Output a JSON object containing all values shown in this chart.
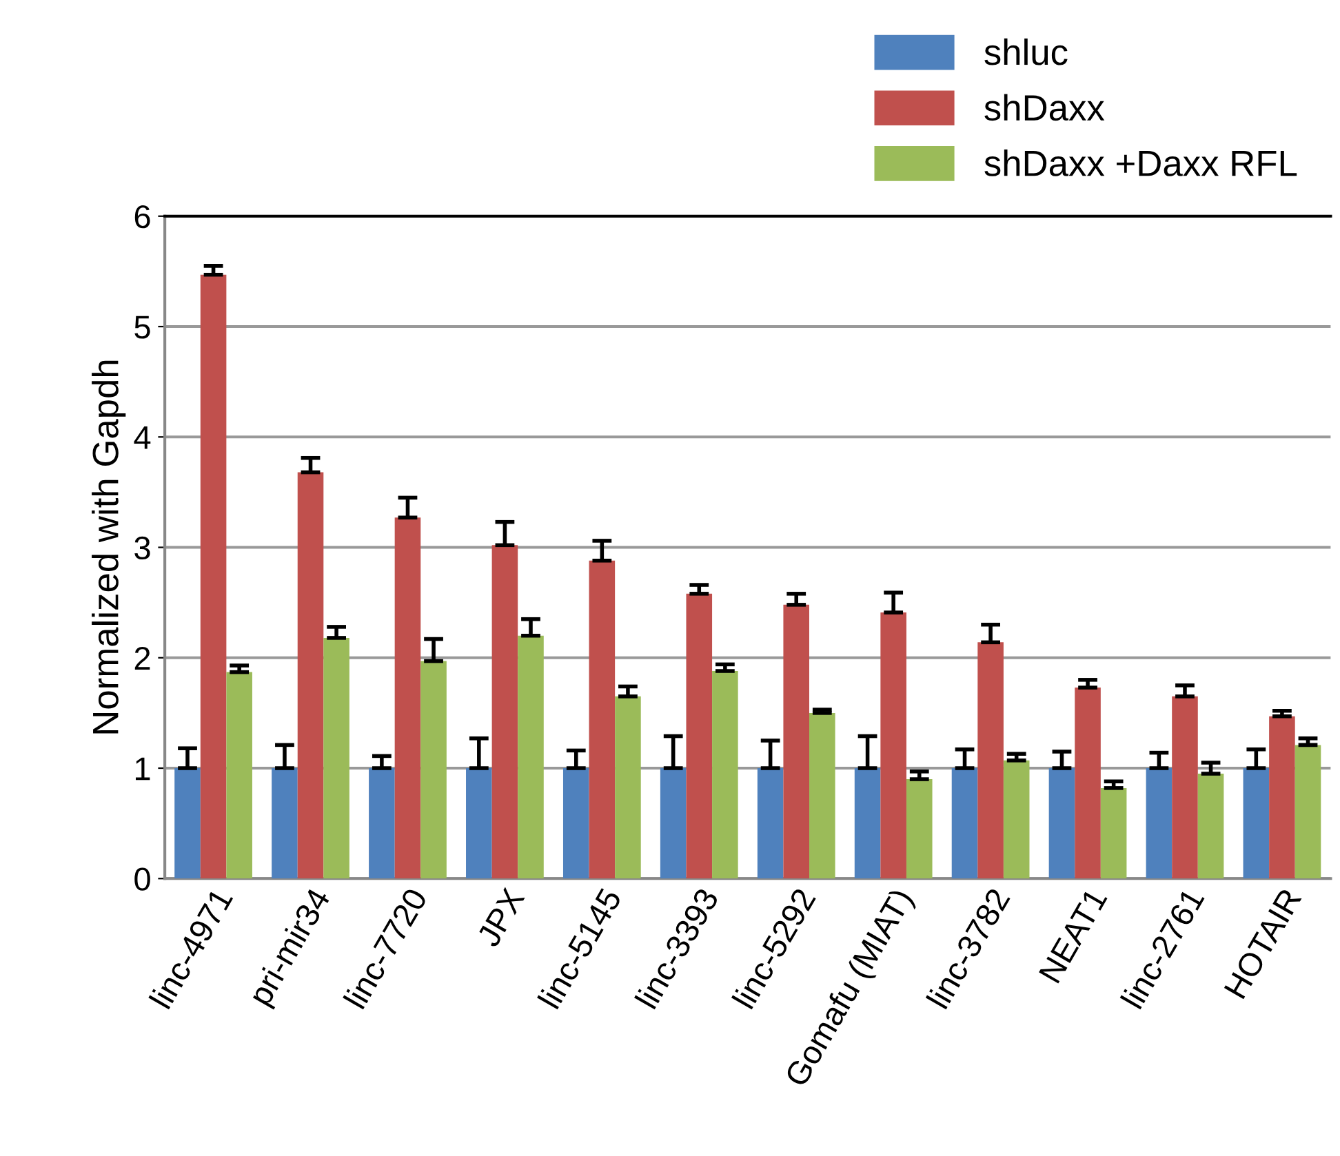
{
  "chart_data": {
    "type": "bar",
    "ylabel": "Normalized with Gapdh",
    "categories": [
      "linc-4971",
      "pri-mir34",
      "linc-7720",
      "JPX",
      "linc-5145",
      "linc-3393",
      "linc-5292",
      "Gomafu (MIAT)",
      "linc-3782",
      "NEAT1",
      "linc-2761",
      "HOTAIR"
    ],
    "series": [
      {
        "name": "shluc",
        "color": "#4f81bd",
        "values": [
          1,
          1,
          1,
          1,
          1,
          1,
          1,
          1,
          1,
          1,
          1,
          1
        ],
        "errors": [
          [
            1,
            1.18
          ],
          [
            1,
            1.21
          ],
          [
            1,
            1.11
          ],
          [
            1,
            1.27
          ],
          [
            1,
            1.16
          ],
          [
            1,
            1.29
          ],
          [
            1,
            1.25
          ],
          [
            1,
            1.29
          ],
          [
            1,
            1.17
          ],
          [
            1,
            1.15
          ],
          [
            1,
            1.14
          ],
          [
            1,
            1.17
          ]
        ]
      },
      {
        "name": "shDaxx",
        "color": "#c0504d",
        "values": [
          5.47,
          3.68,
          3.27,
          3.02,
          2.88,
          2.58,
          2.48,
          2.41,
          2.14,
          1.73,
          1.65,
          1.47
        ],
        "errors": [
          [
            5.47,
            5.55
          ],
          [
            3.68,
            3.81
          ],
          [
            3.27,
            3.45
          ],
          [
            3.02,
            3.23
          ],
          [
            2.88,
            3.06
          ],
          [
            2.58,
            2.66
          ],
          [
            2.48,
            2.58
          ],
          [
            2.41,
            2.59
          ],
          [
            2.14,
            2.3
          ],
          [
            1.73,
            1.8
          ],
          [
            1.65,
            1.75
          ],
          [
            1.47,
            1.52
          ]
        ]
      },
      {
        "name": "shDaxx +Daxx RFL",
        "color": "#9bbb59",
        "values": [
          1.87,
          2.18,
          1.97,
          2.2,
          1.65,
          1.88,
          1.5,
          0.9,
          1.07,
          0.82,
          0.95,
          1.21
        ],
        "errors": [
          [
            1.87,
            1.93
          ],
          [
            2.18,
            2.28
          ],
          [
            1.97,
            2.17
          ],
          [
            2.2,
            2.35
          ],
          [
            1.65,
            1.74
          ],
          [
            1.88,
            1.94
          ],
          [
            1.5,
            1.53
          ],
          [
            0.9,
            0.97
          ],
          [
            1.07,
            1.13
          ],
          [
            0.82,
            0.88
          ],
          [
            0.95,
            1.05
          ],
          [
            1.21,
            1.27
          ]
        ]
      }
    ],
    "ylim": [
      0,
      6
    ],
    "yticks": [
      0,
      1,
      2,
      3,
      4,
      5,
      6
    ],
    "grid": "y",
    "legend": "top right"
  }
}
